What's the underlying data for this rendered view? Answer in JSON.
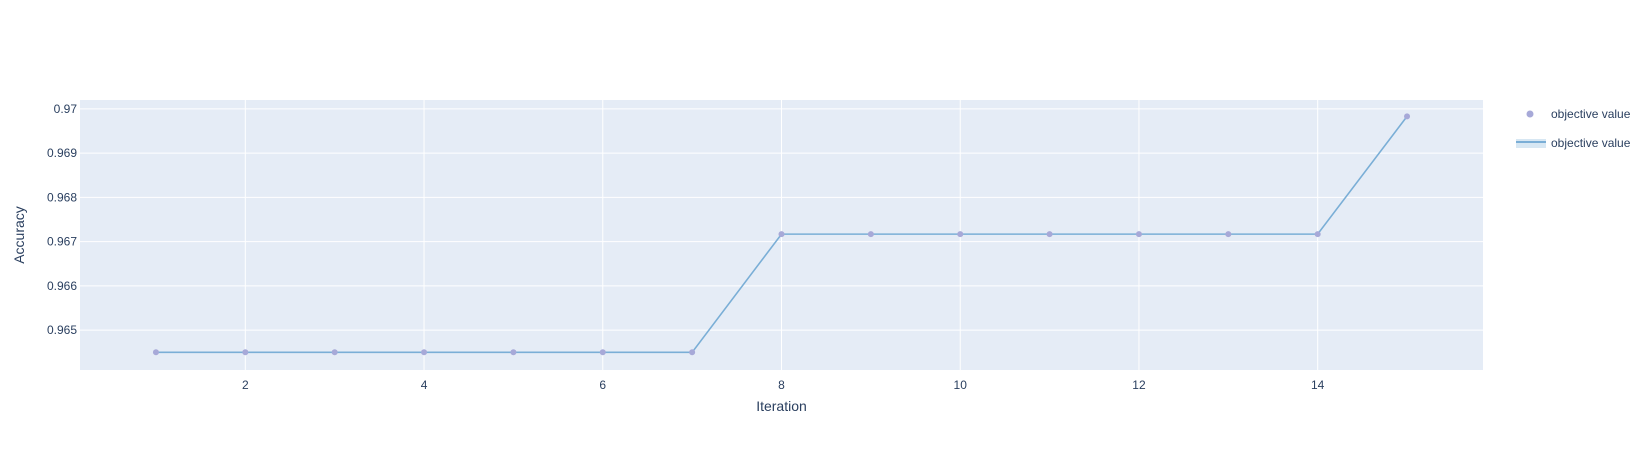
{
  "chart_data": {
    "type": "line",
    "xlabel": "Iteration",
    "ylabel": "Accuracy",
    "xlim": [
      0.15,
      15.85
    ],
    "ylim": [
      0.9641,
      0.9702
    ],
    "x_ticks": [
      2,
      4,
      6,
      8,
      10,
      12,
      14
    ],
    "y_ticks": [
      0.965,
      0.966,
      0.967,
      0.968,
      0.969,
      0.97
    ],
    "y_tick_labels": [
      "0.965",
      "0.966",
      "0.967",
      "0.968",
      "0.969",
      "0.97"
    ],
    "grid": true,
    "legend_position": "top-right",
    "series": [
      {
        "name": "objective value",
        "mode": "markers",
        "color": "#a7a9d8",
        "x": [
          1,
          2,
          3,
          4,
          5,
          6,
          7,
          8,
          9,
          10,
          11,
          12,
          13,
          14,
          15
        ],
        "y": [
          0.9645,
          0.9645,
          0.9645,
          0.9645,
          0.9645,
          0.9645,
          0.9645,
          0.96717,
          0.96717,
          0.96717,
          0.96717,
          0.96717,
          0.96717,
          0.96717,
          0.96983
        ]
      },
      {
        "name": "objective value",
        "mode": "lines",
        "color": "#7aaed6",
        "x": [
          1,
          2,
          3,
          4,
          5,
          6,
          7,
          8,
          9,
          10,
          11,
          12,
          13,
          14,
          15
        ],
        "y": [
          0.9645,
          0.9645,
          0.9645,
          0.9645,
          0.9645,
          0.9645,
          0.9645,
          0.96717,
          0.96717,
          0.96717,
          0.96717,
          0.96717,
          0.96717,
          0.96717,
          0.96983
        ]
      }
    ]
  }
}
